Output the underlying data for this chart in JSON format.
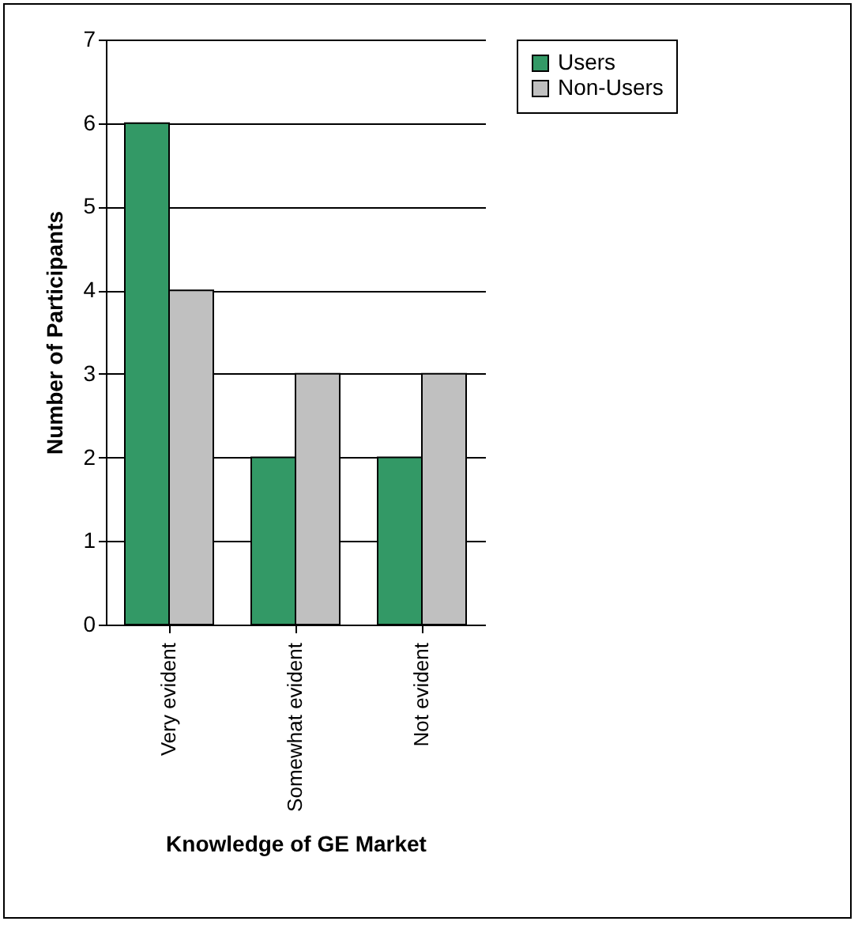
{
  "chart_data": {
    "type": "bar",
    "xlabel": "Knowledge of GE Market",
    "ylabel": "Number of Participants",
    "categories": [
      "Very evident",
      "Somewhat evident",
      "Not evident"
    ],
    "series": [
      {
        "name": "Users",
        "color": "#339966",
        "values": [
          6,
          2,
          2
        ]
      },
      {
        "name": "Non-Users",
        "color": "#c0c0c0",
        "values": [
          4,
          3,
          3
        ]
      }
    ],
    "ylim": [
      0,
      7
    ],
    "yticks": [
      0,
      1,
      2,
      3,
      4,
      5,
      6,
      7
    ],
    "grid": "y",
    "legend": "right"
  }
}
